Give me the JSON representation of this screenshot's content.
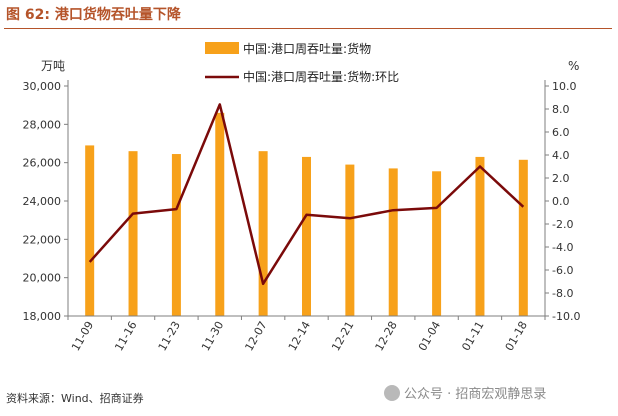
{
  "header": {
    "title": "图 62:  港口货物吞吐量下降"
  },
  "footer": {
    "source": "资料来源：Wind、招商证券"
  },
  "watermark": {
    "text": "公众号 · 招商宏观静思录"
  },
  "colors": {
    "bar": "#F7A11A",
    "line": "#7B0A0A",
    "title": "#B5542A",
    "axis": "#7F7F7F"
  },
  "chart_data": {
    "type": "bar",
    "categories": [
      "11-09",
      "11-16",
      "11-23",
      "11-30",
      "12-07",
      "12-14",
      "12-21",
      "12-28",
      "01-04",
      "01-11",
      "01-18"
    ],
    "series": [
      {
        "name": "中国:港口周吞吐量:货物",
        "type": "bar",
        "axis": "left",
        "values": [
          26900,
          26600,
          26450,
          28600,
          26600,
          26300,
          25900,
          25700,
          25550,
          26300,
          26150
        ]
      },
      {
        "name": "中国:港口周吞吐量:货物:环比",
        "type": "line",
        "axis": "right",
        "values": [
          -5.3,
          -1.1,
          -0.7,
          8.4,
          -7.2,
          -1.2,
          -1.5,
          -0.8,
          -0.6,
          3.0,
          -0.5
        ]
      }
    ],
    "left_axis": {
      "unit": "万吨",
      "ylim": [
        18000,
        30000
      ],
      "ticks": [
        "18,000",
        "20,000",
        "22,000",
        "24,000",
        "26,000",
        "28,000",
        "30,000"
      ],
      "tick_values": [
        18000,
        20000,
        22000,
        24000,
        26000,
        28000,
        30000
      ]
    },
    "right_axis": {
      "unit": "%",
      "ylim": [
        -10,
        10
      ],
      "ticks": [
        "-10.0",
        "-8.0",
        "-6.0",
        "-4.0",
        "-2.0",
        "0.0",
        "2.0",
        "4.0",
        "6.0",
        "8.0",
        "10.0"
      ],
      "tick_values": [
        -10,
        -8,
        -6,
        -4,
        -2,
        0,
        2,
        4,
        6,
        8,
        10
      ]
    },
    "legend": {
      "placement": "top-center"
    },
    "grid": false
  }
}
